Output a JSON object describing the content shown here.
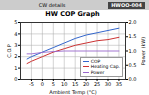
{
  "chart_data": {
    "type": "line",
    "title": "HW COP Graph",
    "annotations": [
      "CW details",
      "HWOO-004"
    ],
    "xlabel": "Ambient Temp (°C)",
    "ylabel": "C.O.P",
    "y2label": "Power (kW)",
    "x": [
      -7,
      -5,
      0,
      5,
      10,
      15,
      20,
      25,
      30,
      35
    ],
    "series": [
      {
        "name": "COP",
        "color": "#3366cc",
        "values": [
          1.8,
          2.0,
          2.4,
          2.8,
          3.2,
          3.6,
          3.9,
          4.1,
          4.3,
          4.5
        ]
      },
      {
        "name": "Heating Cap.",
        "color": "#cc3333",
        "values": [
          1.4,
          1.6,
          2.0,
          2.4,
          2.7,
          3.0,
          3.2,
          3.4,
          3.5,
          3.7
        ]
      },
      {
        "name": "Power",
        "color": "#9966cc",
        "axis": "y2",
        "values": [
          0.9,
          0.9,
          0.95,
          0.98,
          1.0,
          1.0,
          1.0,
          1.0,
          1.0,
          1.0
        ]
      }
    ],
    "xlim": [
      -10,
      38
    ],
    "xticks": [
      -5,
      0,
      5,
      10,
      15,
      20,
      25,
      30,
      35
    ],
    "ylim": [
      0,
      5
    ],
    "yticks": [
      0,
      1,
      2,
      3,
      4,
      5
    ],
    "y2lim": [
      0,
      2.0
    ],
    "y2ticks": [
      {
        "value": 0,
        "label": "0.0"
      },
      {
        "value": 0.5,
        "label": "0.5"
      },
      {
        "value": 1.0,
        "label": "1.0"
      },
      {
        "value": 1.5,
        "label": "1.5"
      },
      {
        "value": 2.0,
        "label": "2.0"
      }
    ],
    "grid": true,
    "legend": "lower right"
  }
}
